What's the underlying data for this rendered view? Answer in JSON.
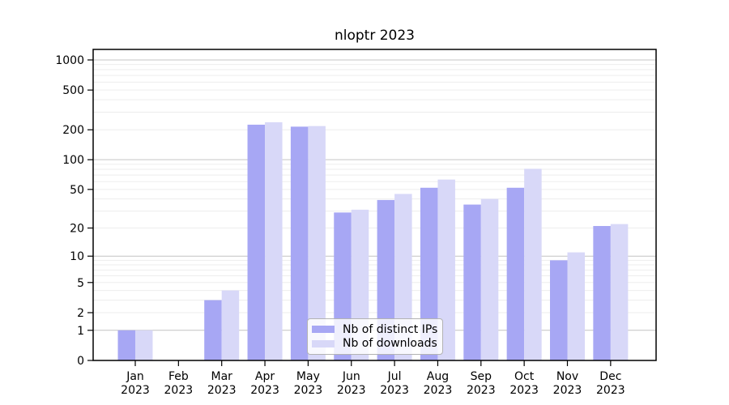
{
  "title": "nloptr 2023",
  "chart_data": {
    "type": "bar",
    "title": "nloptr 2023",
    "categories": [
      "Jan",
      "Feb",
      "Mar",
      "Apr",
      "May",
      "Jun",
      "Jul",
      "Aug",
      "Sep",
      "Oct",
      "Nov",
      "Dec"
    ],
    "category_year": "2023",
    "yscale": "log1p",
    "ylim": [
      0,
      1000
    ],
    "yticks": [
      0,
      1,
      2,
      5,
      10,
      20,
      50,
      100,
      200,
      500,
      1000
    ],
    "grid": true,
    "series": [
      {
        "name": "Nb of distinct IPs",
        "color": "#a7a7f4",
        "values": [
          1,
          0,
          3,
          225,
          215,
          29,
          39,
          52,
          35,
          52,
          9,
          21
        ]
      },
      {
        "name": "Nb of downloads",
        "color": "#d8d8f8",
        "values": [
          1,
          0,
          4,
          238,
          218,
          31,
          45,
          63,
          40,
          81,
          11,
          22
        ]
      }
    ],
    "legend": {
      "entries": [
        "Nb of distinct IPs",
        "Nb of downloads"
      ],
      "position": "inside-bottom-center"
    },
    "colors": {
      "background": "#ffffff",
      "bar_distinct_ips": "#a7a7f4",
      "bar_downloads": "#d8d8f8",
      "grid_minor": "#ededed",
      "grid_major": "#c4c4c4",
      "axis": "#000000",
      "text": "#000000"
    }
  }
}
